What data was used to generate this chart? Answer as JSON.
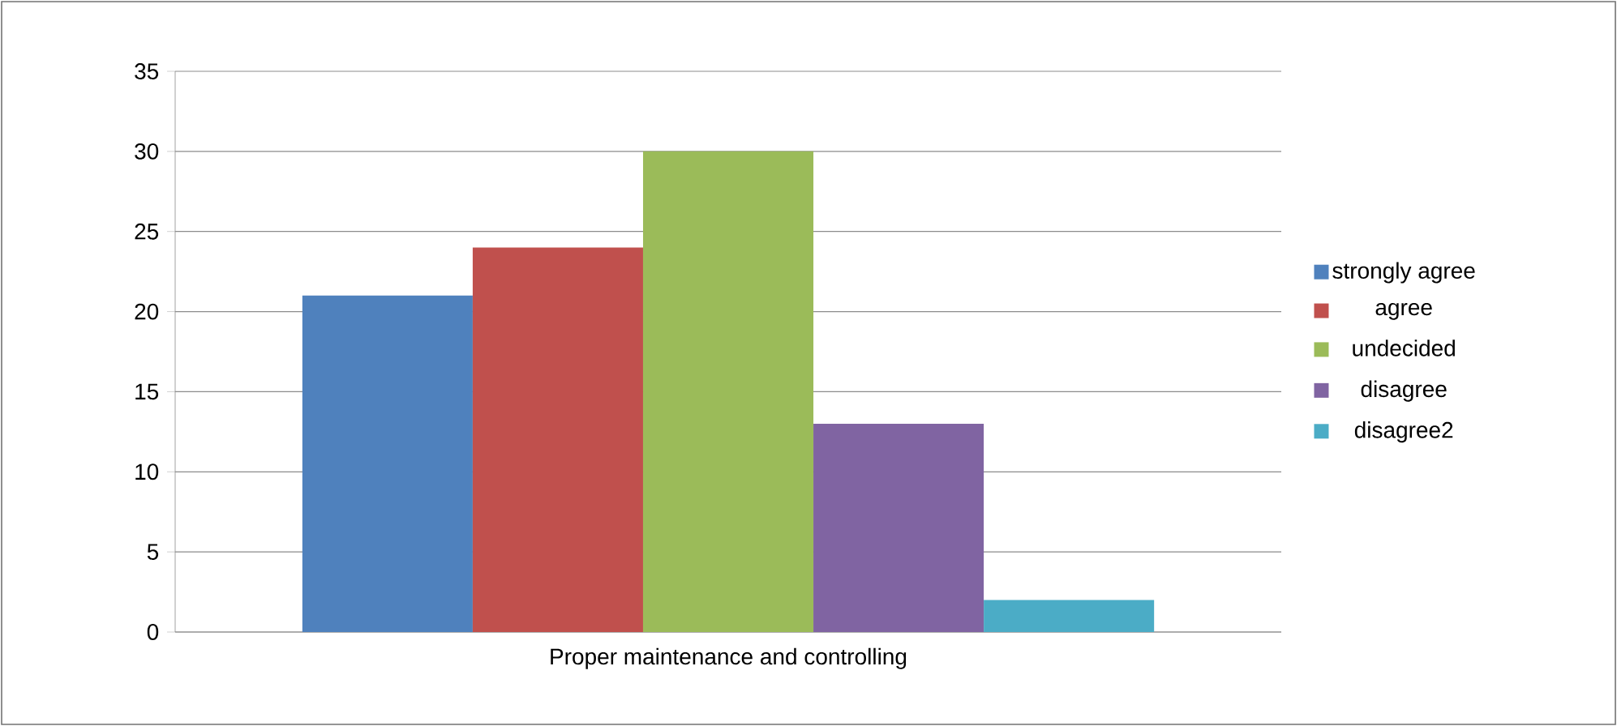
{
  "chart_data": {
    "type": "bar",
    "categories": [
      "Proper maintenance and controlling"
    ],
    "series": [
      {
        "name": "strongly agree",
        "color": "#4f81bd",
        "values": [
          21
        ]
      },
      {
        "name": "agree",
        "color": "#c0504d",
        "values": [
          24
        ]
      },
      {
        "name": "undecided",
        "color": "#9bbb59",
        "values": [
          30
        ]
      },
      {
        "name": "disagree",
        "color": "#8064a2",
        "values": [
          13
        ]
      },
      {
        "name": "disagree2",
        "color": "#4bacc6",
        "values": [
          2
        ]
      }
    ],
    "ylim": [
      0,
      35
    ],
    "yticks": [
      0,
      5,
      10,
      15,
      20,
      25,
      30,
      35
    ],
    "grid": "y",
    "legend": "right"
  }
}
